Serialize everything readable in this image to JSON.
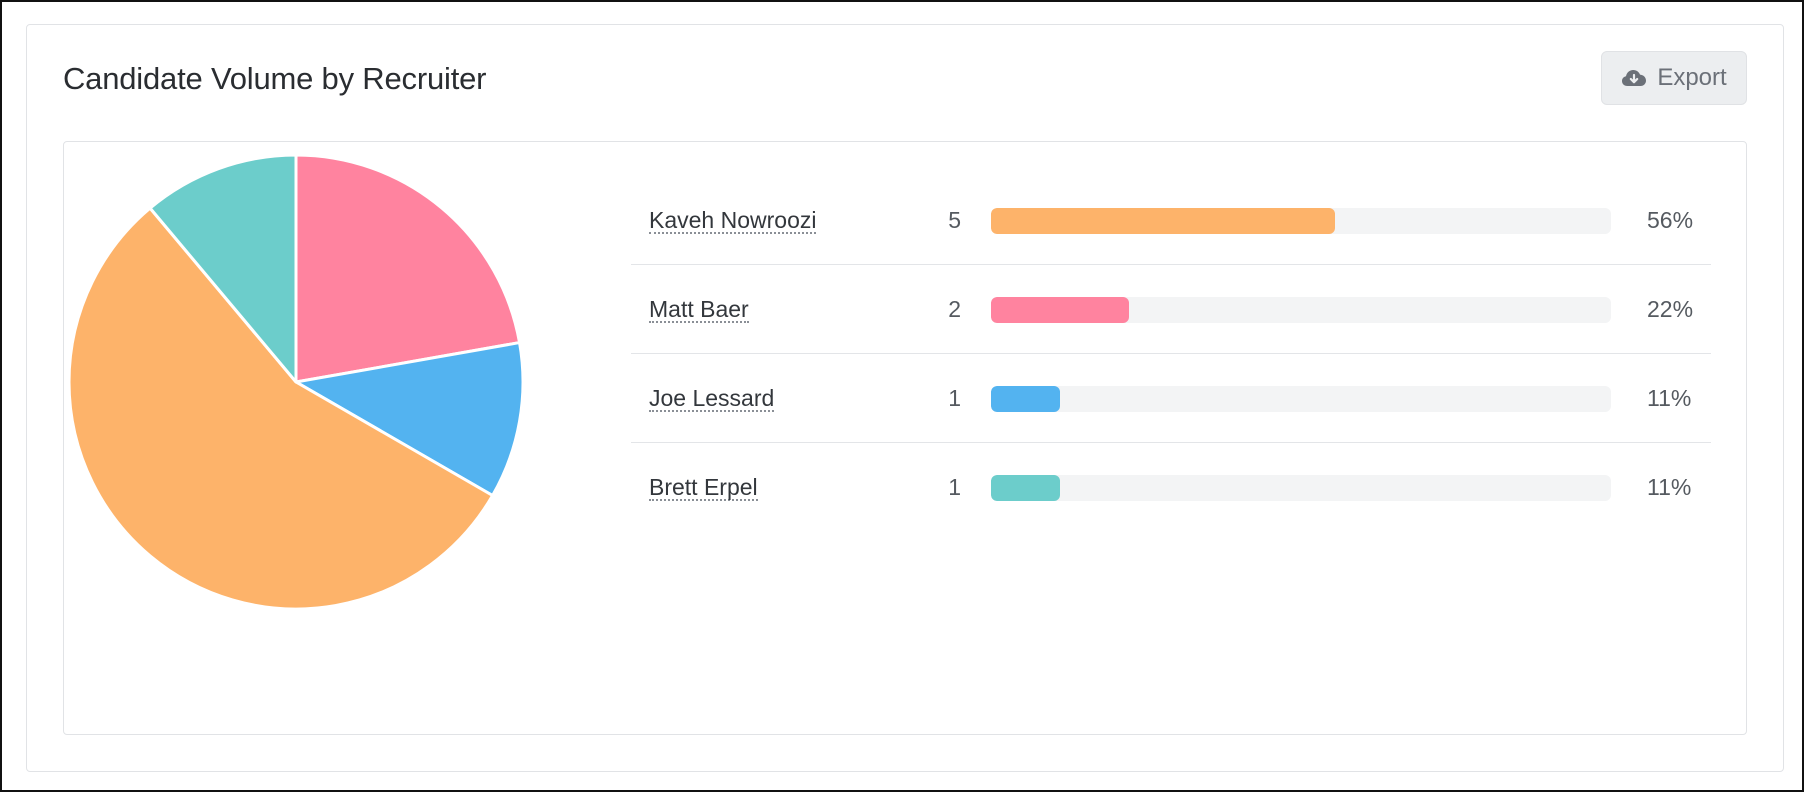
{
  "card": {
    "title": "Candidate Volume by Recruiter",
    "export_label": "Export",
    "export_icon": "cloud-download-icon"
  },
  "chart_data": {
    "type": "pie",
    "categories": [
      "Kaveh Nowroozi",
      "Matt Baer",
      "Joe Lessard",
      "Brett Erpel"
    ],
    "values": [
      5,
      2,
      1,
      1
    ],
    "percentages": [
      "56%",
      "22%",
      "11%",
      "11%"
    ],
    "colors": [
      "#fdb36a",
      "#ff839f",
      "#53b3f0",
      "#6ccdcb"
    ],
    "slice_order_clockwise_from_top": [
      "Matt Baer",
      "Joe Lessard",
      "Kaveh Nowroozi",
      "Brett Erpel"
    ],
    "rows": [
      {
        "name": "Kaveh Nowroozi",
        "count": "5",
        "percent": "56%",
        "fraction": 0.5556,
        "color": "#fdb36a"
      },
      {
        "name": "Matt Baer",
        "count": "2",
        "percent": "22%",
        "fraction": 0.2222,
        "color": "#ff839f"
      },
      {
        "name": "Joe Lessard",
        "count": "1",
        "percent": "11%",
        "fraction": 0.1111,
        "color": "#53b3f0"
      },
      {
        "name": "Brett Erpel",
        "count": "1",
        "percent": "11%",
        "fraction": 0.1111,
        "color": "#6ccdcb"
      }
    ]
  }
}
